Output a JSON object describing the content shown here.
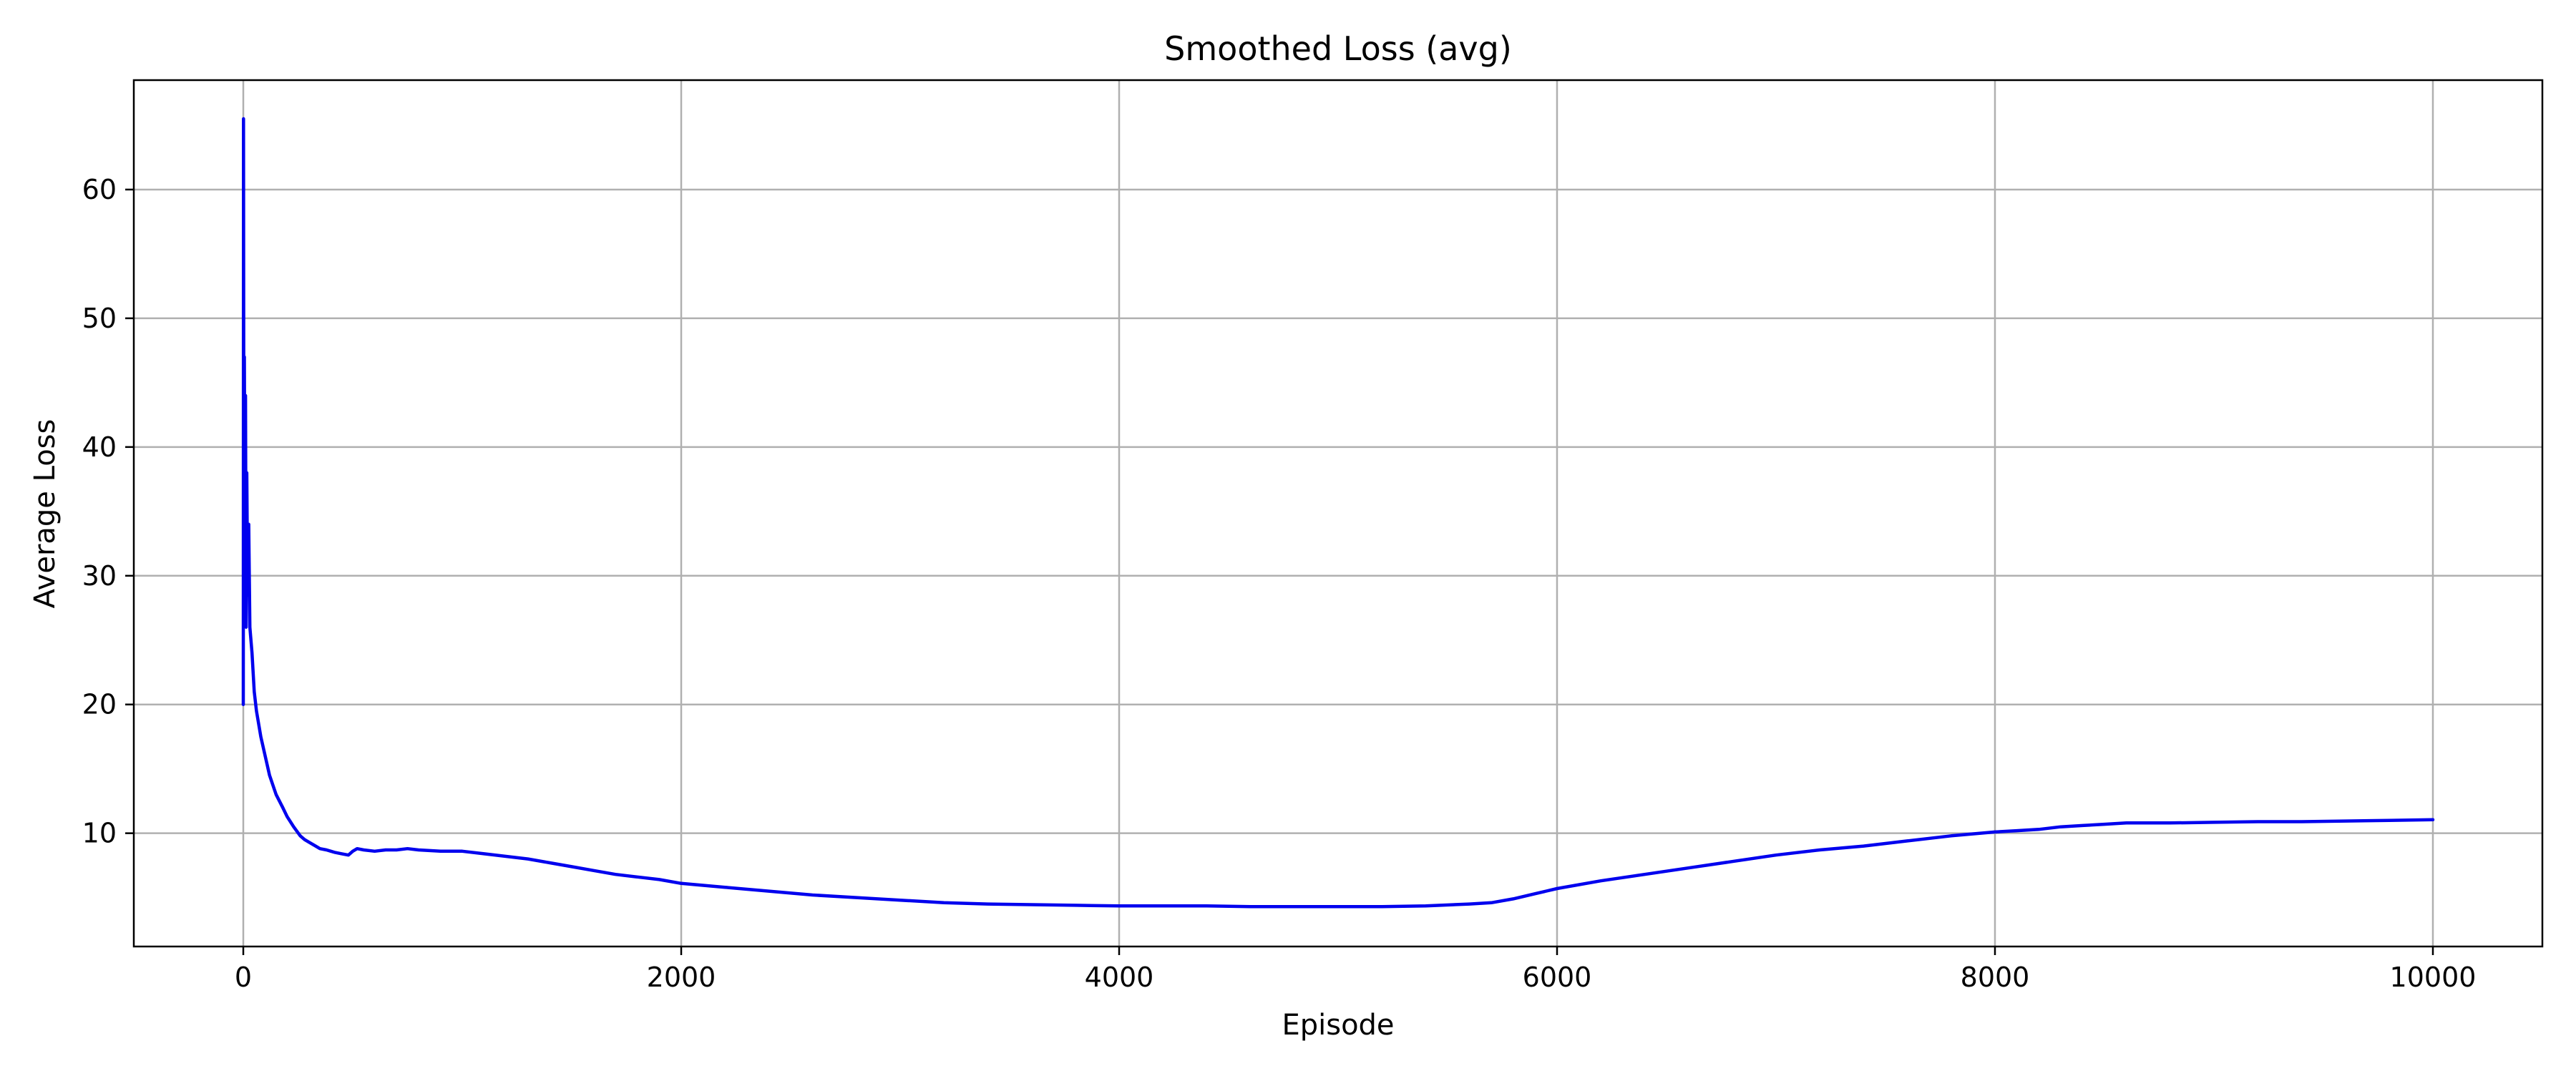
{
  "chart_data": {
    "type": "line",
    "title": "Smoothed Loss (avg)",
    "xlabel": "Episode",
    "ylabel": "Average Loss",
    "xlim": [
      -500,
      10500
    ],
    "ylim": [
      1.2,
      68.5
    ],
    "xticks": [
      0,
      2000,
      4000,
      6000,
      8000,
      10000
    ],
    "yticks": [
      10,
      20,
      30,
      40,
      50,
      60
    ],
    "grid": true,
    "series": [
      {
        "color": "#0000ee",
        "x": [
          0,
          1,
          2,
          3,
          5,
          8,
          10,
          13,
          16,
          20,
          25,
          30,
          40,
          50,
          60,
          80,
          100,
          120,
          150,
          180,
          200,
          230,
          260,
          280,
          300,
          330,
          350,
          380,
          400,
          420,
          450,
          480,
          500,
          520,
          550,
          600,
          650,
          700,
          750,
          800,
          900,
          1000,
          1100,
          1200,
          1300,
          1400,
          1500,
          1600,
          1700,
          1800,
          1900,
          2000,
          2200,
          2400,
          2600,
          2800,
          3000,
          3200,
          3400,
          3600,
          3800,
          4000,
          4200,
          4400,
          4600,
          4800,
          5000,
          5200,
          5400,
          5600,
          5700,
          5800,
          5900,
          6000,
          6200,
          6400,
          6600,
          6800,
          7000,
          7200,
          7400,
          7600,
          7800,
          8000,
          8100,
          8200,
          8300,
          8400,
          8500,
          8600,
          8800,
          9000,
          9200,
          9400,
          9600,
          9800,
          10000
        ],
        "y": [
          20.0,
          65.5,
          48.0,
          34.0,
          47.0,
          30.0,
          44.0,
          26.0,
          38.0,
          28.5,
          34.0,
          26.0,
          24.0,
          21.0,
          19.5,
          17.5,
          16.0,
          14.5,
          13.0,
          12.0,
          11.3,
          10.5,
          9.8,
          9.5,
          9.3,
          9.0,
          8.8,
          8.7,
          8.6,
          8.5,
          8.4,
          8.3,
          8.6,
          8.8,
          8.7,
          8.6,
          8.7,
          8.7,
          8.8,
          8.7,
          8.6,
          8.6,
          8.4,
          8.2,
          8.0,
          7.7,
          7.4,
          7.1,
          6.8,
          6.6,
          6.4,
          6.1,
          5.8,
          5.5,
          5.2,
          5.0,
          4.8,
          4.6,
          4.5,
          4.45,
          4.4,
          4.35,
          4.35,
          4.35,
          4.3,
          4.3,
          4.3,
          4.3,
          4.35,
          4.5,
          4.6,
          4.9,
          5.3,
          5.7,
          6.3,
          6.8,
          7.3,
          7.8,
          8.3,
          8.7,
          9.0,
          9.4,
          9.8,
          10.1,
          10.2,
          10.3,
          10.5,
          10.6,
          10.7,
          10.8,
          10.8,
          10.85,
          10.9,
          10.9,
          10.95,
          11.0,
          11.05
        ]
      }
    ]
  }
}
